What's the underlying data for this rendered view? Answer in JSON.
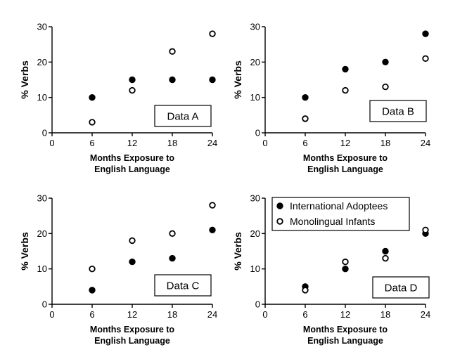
{
  "chart_data": [
    {
      "type": "scatter",
      "label": "Data A",
      "xlabel": [
        "Months Exposure to",
        "English Language"
      ],
      "ylabel": "% Verbs",
      "xlim": [
        0,
        24
      ],
      "ylim": [
        0,
        30
      ],
      "xticks": [
        0,
        6,
        12,
        18,
        24
      ],
      "yticks": [
        0,
        10,
        20,
        30
      ],
      "series": [
        {
          "name": "International Adoptees",
          "marker": "filled",
          "x": [
            6,
            12,
            18,
            24
          ],
          "y": [
            10,
            15,
            15,
            15
          ]
        },
        {
          "name": "Monolingual Infants",
          "marker": "open",
          "x": [
            6,
            12,
            18,
            24
          ],
          "y": [
            3,
            12,
            23,
            28
          ]
        }
      ]
    },
    {
      "type": "scatter",
      "label": "Data B",
      "xlabel": [
        "Months Exposure to",
        "English Language"
      ],
      "ylabel": "% Verbs",
      "xlim": [
        0,
        24
      ],
      "ylim": [
        0,
        30
      ],
      "xticks": [
        0,
        6,
        12,
        18,
        24
      ],
      "yticks": [
        0,
        10,
        20,
        30
      ],
      "series": [
        {
          "name": "International Adoptees",
          "marker": "filled",
          "x": [
            6,
            12,
            18,
            24
          ],
          "y": [
            10,
            18,
            20,
            28
          ]
        },
        {
          "name": "Monolingual Infants",
          "marker": "open",
          "x": [
            6,
            12,
            18,
            24
          ],
          "y": [
            4,
            12,
            13,
            21
          ]
        }
      ]
    },
    {
      "type": "scatter",
      "label": "Data C",
      "xlabel": [
        "Months Exposure to",
        "English Language"
      ],
      "ylabel": "% Verbs",
      "xlim": [
        0,
        24
      ],
      "ylim": [
        0,
        30
      ],
      "xticks": [
        0,
        6,
        12,
        18,
        24
      ],
      "yticks": [
        0,
        10,
        20,
        30
      ],
      "series": [
        {
          "name": "International Adoptees",
          "marker": "filled",
          "x": [
            6,
            12,
            18,
            24
          ],
          "y": [
            4,
            12,
            13,
            21
          ]
        },
        {
          "name": "Monolingual Infants",
          "marker": "open",
          "x": [
            6,
            12,
            18,
            24
          ],
          "y": [
            10,
            18,
            20,
            28
          ]
        }
      ]
    },
    {
      "type": "scatter",
      "label": "Data D",
      "xlabel": [
        "Months Exposure to",
        "English Language"
      ],
      "ylabel": "% Verbs",
      "xlim": [
        0,
        24
      ],
      "ylim": [
        0,
        30
      ],
      "xticks": [
        0,
        6,
        12,
        18,
        24
      ],
      "yticks": [
        0,
        10,
        20,
        30
      ],
      "legend": {
        "placement": "top-left",
        "entries": [
          "International Adoptees",
          "Monolingual Infants"
        ]
      },
      "series": [
        {
          "name": "International Adoptees",
          "marker": "filled",
          "x": [
            6,
            12,
            18,
            24
          ],
          "y": [
            5,
            10,
            15,
            20
          ]
        },
        {
          "name": "Monolingual Infants",
          "marker": "open",
          "x": [
            6,
            12,
            18,
            24
          ],
          "y": [
            4,
            12,
            13,
            21
          ]
        }
      ]
    }
  ]
}
